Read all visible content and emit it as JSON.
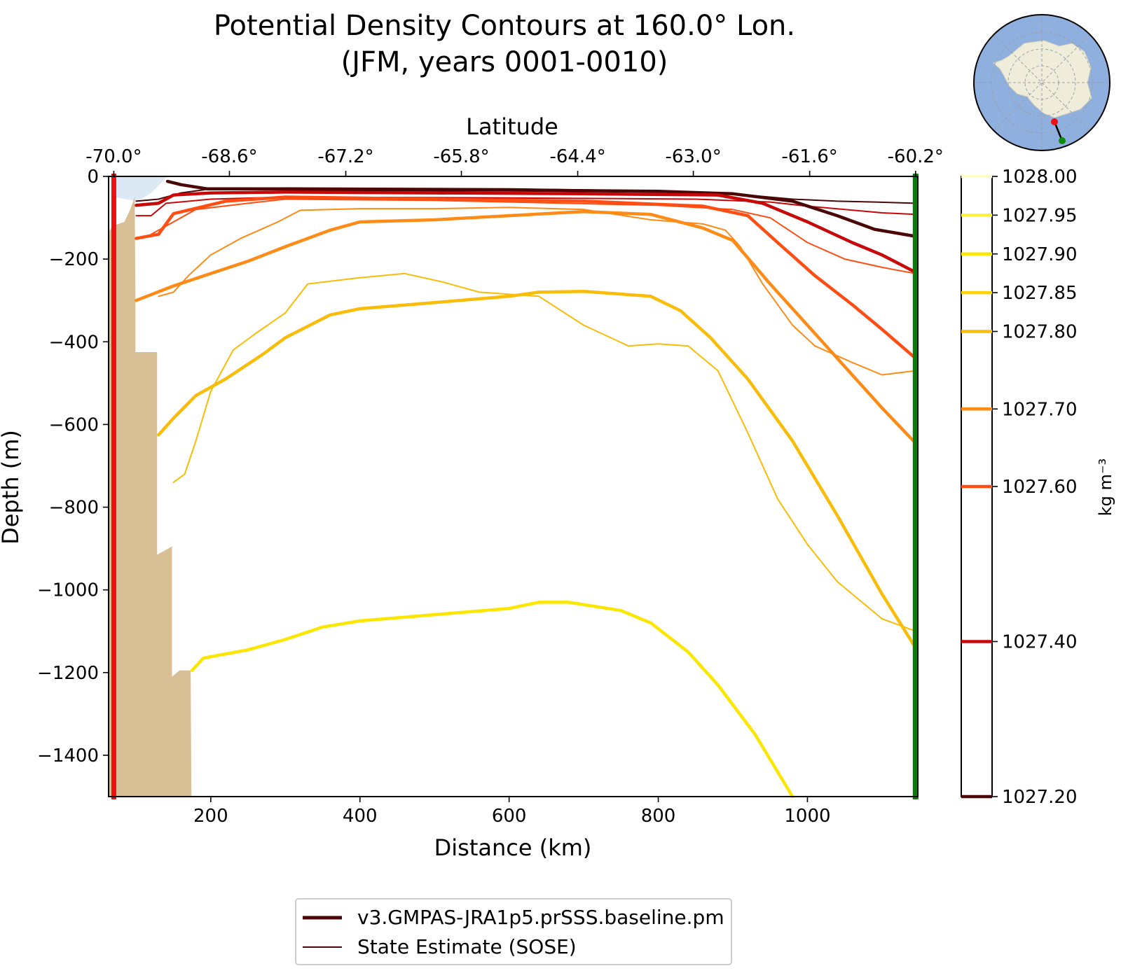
{
  "chart_data": {
    "type": "line",
    "title": "Potential Density Contours at 160.0° Lon.",
    "subtitle": "(JFM, years 0001-0010)",
    "xlabel": "Distance (km)",
    "ylabel": "Depth (m)",
    "top_axis_label": "Latitude",
    "xlim": [
      63,
      1148
    ],
    "ylim": [
      -1500,
      0
    ],
    "x_ticks": [
      200,
      400,
      600,
      800,
      1000
    ],
    "y_ticks": [
      0,
      -200,
      -400,
      -600,
      -800,
      -1000,
      -1200,
      -1400
    ],
    "y_tick_labels": [
      "0",
      "−200",
      "−400",
      "−600",
      "−800",
      "−1000",
      "−1200",
      "−1400"
    ],
    "top_ticks": [
      {
        "x": 70,
        "label": "-70.0°"
      },
      {
        "x": 225,
        "label": "-68.6°"
      },
      {
        "x": 381,
        "label": "-67.2°"
      },
      {
        "x": 536,
        "label": "-65.8°"
      },
      {
        "x": 692,
        "label": "-64.4°"
      },
      {
        "x": 847,
        "label": "-63.0°"
      },
      {
        "x": 1003,
        "label": "-61.6°"
      },
      {
        "x": 1145,
        "label": "-60.2°"
      }
    ],
    "colorbar": {
      "label": "kg m⁻³",
      "levels": [
        {
          "value": 1027.2,
          "label": "1027.20",
          "color": "#4a0705"
        },
        {
          "value": 1027.4,
          "label": "1027.40",
          "color": "#c80808"
        },
        {
          "value": 1027.6,
          "label": "1027.60",
          "color": "#ff4e14"
        },
        {
          "value": 1027.7,
          "label": "1027.70",
          "color": "#fd8b16"
        },
        {
          "value": 1027.8,
          "label": "1027.80",
          "color": "#f9bc08"
        },
        {
          "value": 1027.85,
          "label": "1027.85",
          "color": "#fad405"
        },
        {
          "value": 1027.9,
          "label": "1027.90",
          "color": "#fbe600"
        },
        {
          "value": 1027.95,
          "label": "1027.95",
          "color": "#fef13a"
        },
        {
          "value": 1028.0,
          "label": "1028.00",
          "color": "#fffeca"
        }
      ]
    },
    "legend": {
      "position": "bottom-center",
      "entries": [
        {
          "label": "v3.GMPAS-JRA1p5.prSSS.baseline.pm",
          "style": "thick"
        },
        {
          "label": "State Estimate (SOSE)",
          "style": "thin"
        }
      ]
    },
    "bathymetry": [
      [
        63,
        -135
      ],
      [
        68,
        -120
      ],
      [
        84,
        -110
      ],
      [
        92,
        -80
      ],
      [
        98,
        -50
      ],
      [
        99,
        -300
      ],
      [
        99,
        -425
      ],
      [
        128,
        -425
      ],
      [
        128,
        -915
      ],
      [
        148,
        -895
      ],
      [
        148,
        -1210
      ],
      [
        158,
        -1195
      ],
      [
        173,
        -1195
      ],
      [
        174,
        -1500
      ]
    ],
    "ice_region": [
      [
        70,
        0
      ],
      [
        142,
        0
      ],
      [
        120,
        -40
      ],
      [
        102,
        -60
      ],
      [
        70,
        -50
      ]
    ],
    "series": [
      {
        "name": "v3.GMPAS-JRA1p5.prSSS.baseline.pm",
        "level": 1027.2,
        "x": [
          142,
          160,
          195,
          250,
          400,
          600,
          800,
          900,
          980,
          1040,
          1090,
          1145
        ],
        "y": [
          -12,
          -20,
          -30,
          -30,
          -32,
          -33,
          -36,
          -42,
          -60,
          -95,
          -128,
          -145
        ]
      },
      {
        "name": "v3.GMPAS-JRA1p5.prSSS.baseline.pm",
        "level": 1027.4,
        "x": [
          100,
          130,
          150,
          200,
          300,
          500,
          700,
          880,
          940,
          1000,
          1060,
          1100,
          1145
        ],
        "y": [
          -70,
          -65,
          -45,
          -40,
          -38,
          -40,
          -42,
          -45,
          -65,
          -110,
          -160,
          -190,
          -232
        ]
      },
      {
        "name": "v3.GMPAS-JRA1p5.prSSS.baseline.pm",
        "level": 1027.6,
        "x": [
          100,
          130,
          150,
          220,
          300,
          500,
          700,
          860,
          920,
          960,
          1010,
          1060,
          1100,
          1145
        ],
        "y": [
          -150,
          -140,
          -90,
          -60,
          -50,
          -55,
          -60,
          -72,
          -95,
          -160,
          -240,
          -310,
          -370,
          -440
        ]
      },
      {
        "name": "v3.GMPAS-JRA1p5.prSSS.baseline.pm",
        "level": 1027.7,
        "x": [
          100,
          150,
          200,
          250,
          300,
          360,
          400,
          500,
          600,
          700,
          790,
          860,
          900,
          950,
          1000,
          1050,
          1100,
          1145
        ],
        "y": [
          -300,
          -265,
          -235,
          -205,
          -170,
          -130,
          -110,
          -105,
          -95,
          -85,
          -92,
          -125,
          -155,
          -260,
          -360,
          -460,
          -560,
          -645
        ]
      },
      {
        "name": "v3.GMPAS-JRA1p5.prSSS.baseline.pm",
        "level": 1027.8,
        "x": [
          130,
          150,
          180,
          220,
          270,
          300,
          360,
          400,
          500,
          600,
          640,
          700,
          790,
          830,
          870,
          920,
          980,
          1040,
          1100,
          1145
        ],
        "y": [
          -625,
          -585,
          -530,
          -490,
          -430,
          -390,
          -335,
          -320,
          -305,
          -290,
          -280,
          -278,
          -290,
          -325,
          -390,
          -490,
          -640,
          -820,
          -1010,
          -1140
        ]
      },
      {
        "name": "v3.GMPAS-JRA1p5.prSSS.baseline.pm",
        "level": 1027.9,
        "x": [
          175,
          190,
          250,
          300,
          350,
          400,
          500,
          600,
          640,
          680,
          750,
          790,
          840,
          880,
          930,
          980
        ],
        "y": [
          -1195,
          -1165,
          -1145,
          -1120,
          -1090,
          -1075,
          -1060,
          -1045,
          -1030,
          -1030,
          -1050,
          -1080,
          -1150,
          -1230,
          -1350,
          -1500
        ]
      },
      {
        "name": "State Estimate (SOSE)",
        "level": 1027.2,
        "x": [
          100,
          130,
          160,
          200,
          300,
          600,
          800,
          900,
          980,
          1040,
          1090,
          1145
        ],
        "y": [
          -60,
          -55,
          -40,
          -30,
          -28,
          -30,
          -35,
          -42,
          -55,
          -60,
          -62,
          -65
        ]
      },
      {
        "name": "State Estimate (SOSE)",
        "level": 1027.4,
        "x": [
          100,
          120,
          140,
          200,
          300,
          600,
          850,
          950,
          1000,
          1050,
          1100,
          1145
        ],
        "y": [
          -95,
          -95,
          -65,
          -55,
          -50,
          -52,
          -55,
          -62,
          -72,
          -80,
          -88,
          -92
        ]
      },
      {
        "name": "State Estimate (SOSE)",
        "level": 1027.6,
        "x": [
          120,
          150,
          180,
          250,
          300,
          500,
          800,
          900,
          950,
          1000,
          1050,
          1100,
          1145
        ],
        "y": [
          -140,
          -110,
          -80,
          -65,
          -55,
          -58,
          -70,
          -80,
          -100,
          -160,
          -200,
          -220,
          -235
        ]
      },
      {
        "name": "State Estimate (SOSE)",
        "level": 1027.7,
        "x": [
          130,
          150,
          170,
          200,
          240,
          290,
          320,
          400,
          500,
          600,
          700,
          790,
          860,
          890,
          910,
          940,
          980,
          1010,
          1060,
          1100,
          1145
        ],
        "y": [
          -290,
          -280,
          -240,
          -190,
          -150,
          -110,
          -82,
          -78,
          -78,
          -75,
          -80,
          -105,
          -115,
          -130,
          -170,
          -260,
          -360,
          -410,
          -450,
          -480,
          -470
        ]
      },
      {
        "name": "State Estimate (SOSE)",
        "level": 1027.8,
        "x": [
          150,
          165,
          180,
          200,
          230,
          260,
          300,
          330,
          400,
          460,
          510,
          560,
          640,
          700,
          760,
          800,
          840,
          880,
          920,
          960,
          1000,
          1040,
          1100,
          1145
        ],
        "y": [
          -740,
          -720,
          -640,
          -520,
          -420,
          -380,
          -330,
          -260,
          -245,
          -235,
          -255,
          -280,
          -290,
          -360,
          -410,
          -405,
          -410,
          -470,
          -620,
          -780,
          -890,
          -980,
          -1070,
          -1100
        ]
      }
    ]
  }
}
